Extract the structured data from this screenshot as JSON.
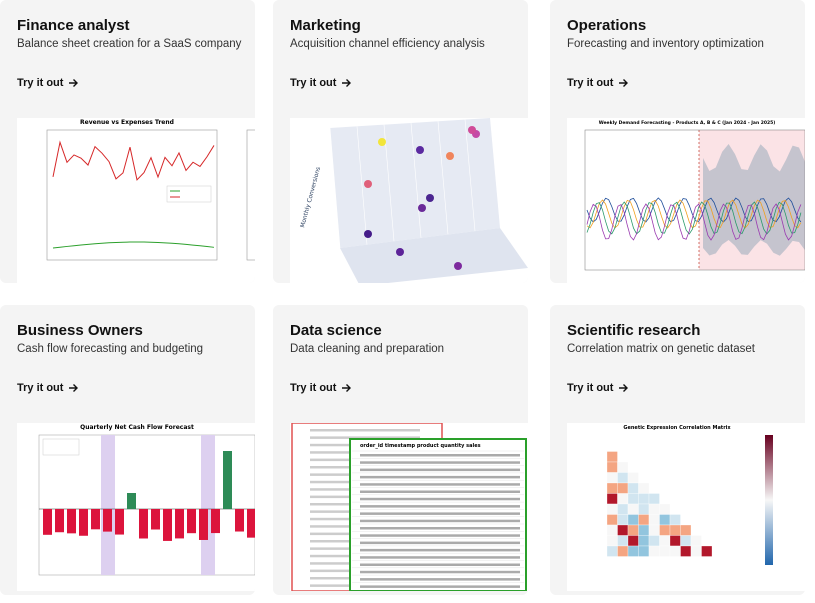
{
  "cards": [
    {
      "title": "Finance analyst",
      "subtitle": "Balance sheet creation for a SaaS company",
      "cta": "Try it out",
      "thumbnail": {
        "title": "Revenue vs Expenses Trend"
      }
    },
    {
      "title": "Marketing",
      "subtitle": "Acquisition channel efficiency analysis",
      "cta": "Try it out",
      "thumbnail": {
        "title": "Monthly Conversions"
      }
    },
    {
      "title": "Operations",
      "subtitle": "Forecasting and inventory optimization",
      "cta": "Try it out",
      "thumbnail": {
        "title": "Weekly Demand Forecasting - Products A, B & C (Jan 2024 - Jan 2025)"
      }
    },
    {
      "title": "Business Owners",
      "subtitle": "Cash flow forecasting and budgeting",
      "cta": "Try it out",
      "thumbnail": {
        "title": "Quarterly Net Cash Flow Forecast"
      }
    },
    {
      "title": "Data science",
      "subtitle": "Data cleaning and preparation",
      "cta": "Try it out",
      "thumbnail": {
        "title": "order_id   timestamp   product   quantity   sales"
      }
    },
    {
      "title": "Scientific research",
      "subtitle": "Correlation matrix on genetic dataset",
      "cta": "Try it out",
      "thumbnail": {
        "title": "Genetic Expression Correlation Matrix"
      }
    }
  ]
}
